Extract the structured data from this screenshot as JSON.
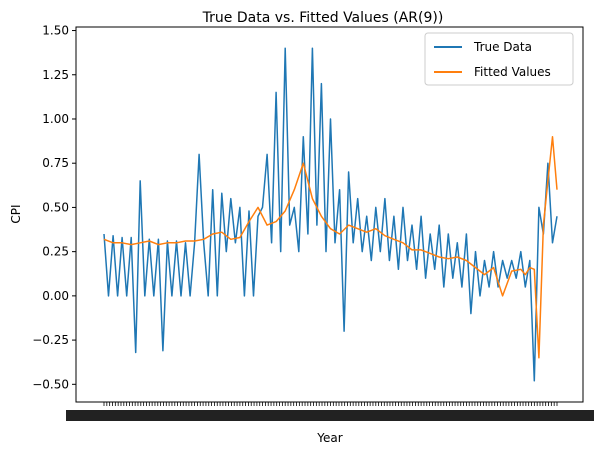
{
  "chart_data": {
    "type": "line",
    "title": "True Data vs. Fitted Values (AR(9))",
    "xlabel": "Year",
    "ylabel": "CPI",
    "ylim": [
      -0.6,
      1.52
    ],
    "yticks": [
      -0.5,
      -0.25,
      0.0,
      0.25,
      0.5,
      0.75,
      1.0,
      1.25,
      1.5
    ],
    "ytick_labels": [
      "−0.50",
      "−0.25",
      "0.00",
      "0.25",
      "0.50",
      "0.75",
      "1.00",
      "1.25",
      "1.50"
    ],
    "x_tick_labels_note_hidden": "",
    "grid": false,
    "legend": "top-right",
    "series": [
      {
        "name": "True Data",
        "color": "#1f77b4",
        "x": [
          0,
          1,
          2,
          3,
          4,
          5,
          6,
          7,
          8,
          9,
          10,
          11,
          12,
          13,
          14,
          15,
          16,
          17,
          18,
          19,
          20,
          21,
          22,
          23,
          24,
          25,
          26,
          27,
          28,
          29,
          30,
          31,
          32,
          33,
          34,
          35,
          36,
          37,
          38,
          39,
          40,
          41,
          42,
          43,
          44,
          45,
          46,
          47,
          48,
          49,
          50,
          51,
          52,
          53,
          54,
          55,
          56,
          57,
          58,
          59,
          60,
          61,
          62,
          63,
          64,
          65,
          66,
          67,
          68,
          69,
          70,
          71,
          72,
          73,
          74,
          75,
          76,
          77,
          78,
          79,
          80,
          81,
          82,
          83,
          84,
          85,
          86,
          87,
          88,
          89,
          90,
          91,
          92,
          93,
          94,
          95,
          96,
          97,
          98,
          99,
          100
        ],
        "y": [
          0.35,
          0.0,
          0.34,
          0.0,
          0.33,
          0.0,
          0.33,
          -0.32,
          0.65,
          0.0,
          0.32,
          0.0,
          0.32,
          -0.31,
          0.31,
          0.0,
          0.31,
          0.0,
          0.3,
          0.0,
          0.3,
          0.8,
          0.3,
          0.0,
          0.6,
          0.0,
          0.58,
          0.25,
          0.55,
          0.3,
          0.5,
          0.0,
          0.48,
          0.0,
          0.45,
          0.5,
          0.8,
          0.3,
          1.15,
          0.25,
          1.4,
          0.4,
          0.5,
          0.25,
          0.9,
          0.35,
          1.4,
          0.4,
          1.2,
          0.25,
          1.0,
          0.3,
          0.6,
          -0.2,
          0.7,
          0.3,
          0.55,
          0.25,
          0.45,
          0.2,
          0.5,
          0.25,
          0.55,
          0.2,
          0.45,
          0.15,
          0.5,
          0.2,
          0.4,
          0.15,
          0.45,
          0.1,
          0.35,
          0.15,
          0.4,
          0.05,
          0.35,
          0.1,
          0.3,
          0.05,
          0.35,
          -0.1,
          0.25,
          0.0,
          0.2,
          0.05,
          0.25,
          0.05,
          0.2,
          0.1,
          0.2,
          0.1,
          0.25,
          0.05,
          0.2,
          -0.48,
          0.5,
          0.35,
          0.75,
          0.3,
          0.45
        ]
      },
      {
        "name": "Fitted Values",
        "color": "#ff7f0e",
        "x": [
          0,
          2,
          4,
          6,
          8,
          10,
          12,
          14,
          16,
          18,
          20,
          22,
          24,
          26,
          28,
          30,
          32,
          34,
          36,
          38,
          40,
          42,
          44,
          46,
          48,
          50,
          52,
          54,
          56,
          58,
          60,
          62,
          64,
          66,
          68,
          70,
          72,
          74,
          76,
          78,
          80,
          82,
          84,
          86,
          88,
          90,
          92,
          93,
          94,
          95,
          96,
          97,
          98,
          99,
          100
        ],
        "y": [
          0.32,
          0.3,
          0.3,
          0.29,
          0.3,
          0.31,
          0.29,
          0.3,
          0.3,
          0.31,
          0.31,
          0.32,
          0.35,
          0.36,
          0.32,
          0.33,
          0.42,
          0.5,
          0.4,
          0.42,
          0.48,
          0.6,
          0.75,
          0.55,
          0.45,
          0.38,
          0.35,
          0.4,
          0.38,
          0.36,
          0.38,
          0.34,
          0.32,
          0.3,
          0.26,
          0.26,
          0.24,
          0.22,
          0.21,
          0.22,
          0.2,
          0.16,
          0.12,
          0.16,
          0.0,
          0.14,
          0.15,
          0.12,
          0.16,
          0.15,
          -0.35,
          0.4,
          0.65,
          0.9,
          0.6
        ]
      }
    ]
  }
}
